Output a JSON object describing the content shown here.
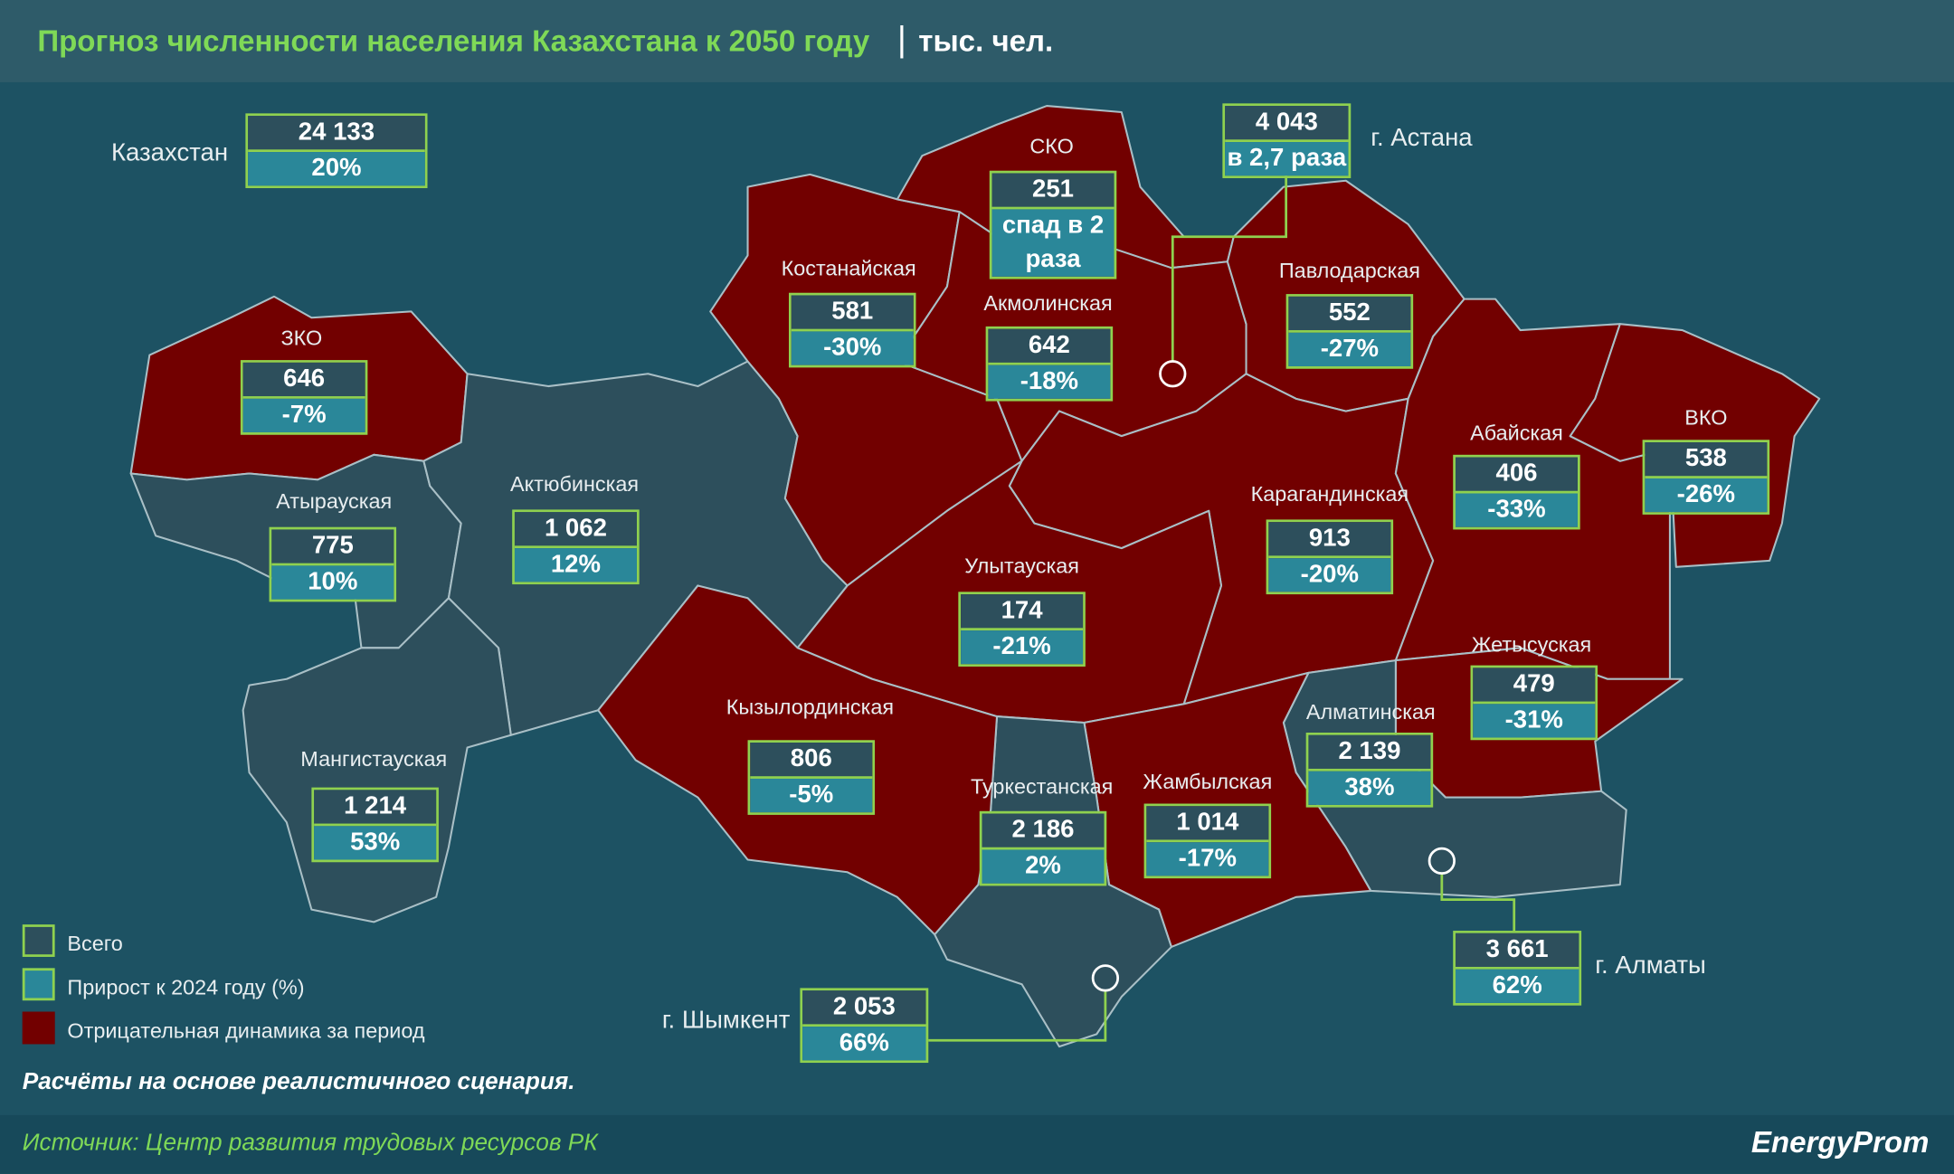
{
  "header": {
    "title": "Прогноз численности населения Казахстана к 2050 году",
    "unit": "тыс. чел."
  },
  "country": {
    "label": "Казахстан",
    "total": "24 133",
    "change": "20%"
  },
  "regions": [
    {
      "label": "ЗКО",
      "total": "646",
      "change": "-7%"
    },
    {
      "label": "Атырауская",
      "total": "775",
      "change": "10%"
    },
    {
      "label": "Актюбинская",
      "total": "1 062",
      "change": "12%"
    },
    {
      "label": "Мангистауская",
      "total": "1 214",
      "change": "53%"
    },
    {
      "label": "Костанайская",
      "total": "581",
      "change": "-30%"
    },
    {
      "label": "СКО",
      "total": "251",
      "change": "спад в 2 раза"
    },
    {
      "label": "Акмолинская",
      "total": "642",
      "change": "-18%"
    },
    {
      "label": "Павлодарская",
      "total": "552",
      "change": "-27%"
    },
    {
      "label": "Абайская",
      "total": "406",
      "change": "-33%"
    },
    {
      "label": "ВКО",
      "total": "538",
      "change": "-26%"
    },
    {
      "label": "Карагандинская",
      "total": "913",
      "change": "-20%"
    },
    {
      "label": "Улытауская",
      "total": "174",
      "change": "-21%"
    },
    {
      "label": "Жетысуская",
      "total": "479",
      "change": "-31%"
    },
    {
      "label": "Кызылординская",
      "total": "806",
      "change": "-5%"
    },
    {
      "label": "Туркестанская",
      "total": "2 186",
      "change": "2%"
    },
    {
      "label": "Жамбылская",
      "total": "1 014",
      "change": "-17%"
    },
    {
      "label": "Алматинская",
      "total": "2 139",
      "change": "38%"
    }
  ],
  "cities": [
    {
      "label": "г. Астана",
      "total": "4 043",
      "change": "в 2,7 раза"
    },
    {
      "label": "г. Алматы",
      "total": "3 661",
      "change": "62%"
    },
    {
      "label": "г. Шымкент",
      "total": "2 053",
      "change": "66%"
    }
  ],
  "legend": [
    "Всего",
    "Прирост к 2024 году (%)",
    "Отрицательная динамика за период"
  ],
  "note": "Расчёты на основе реалистичного сценария.",
  "footer": {
    "source": "Источник: Центр развития трудовых ресурсов РК",
    "brand": "EnergyProm"
  }
}
